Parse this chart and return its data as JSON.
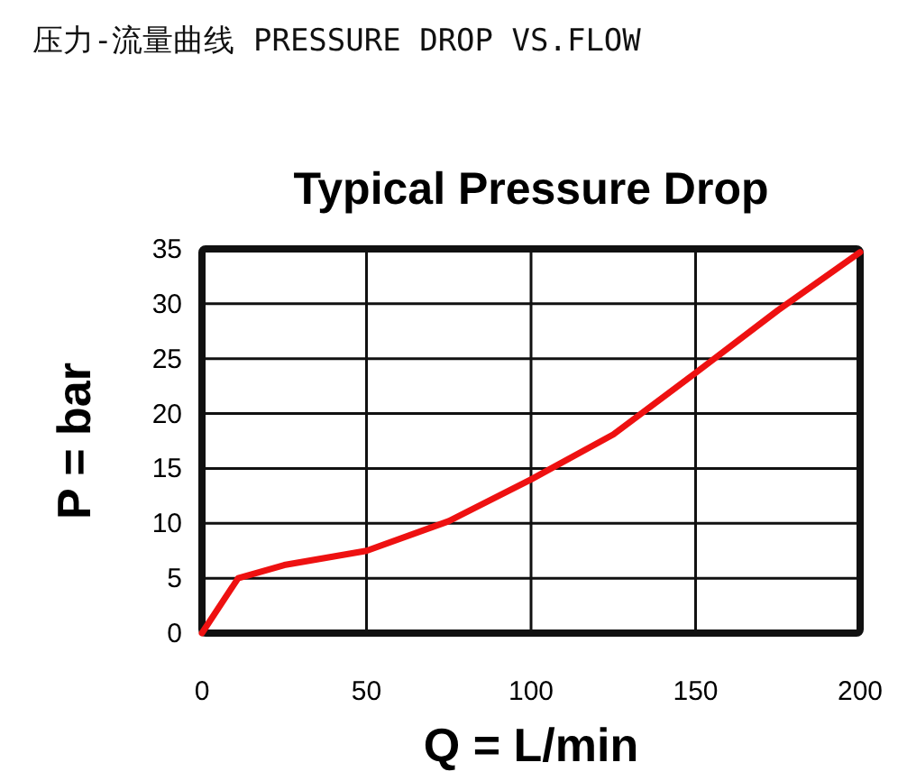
{
  "chart_data": {
    "type": "line",
    "title": "压力-流量曲线 PRESSURE DROP VS.FLOW",
    "subtitle": "Typical Pressure Drop",
    "xlabel": "Q = L/min",
    "ylabel": "P = bar",
    "x": [
      0,
      11,
      25,
      50,
      75,
      100,
      125,
      150,
      175,
      200
    ],
    "series": [
      {
        "color": "#ee1111",
        "values": [
          0,
          5,
          6.2,
          7.5,
          10.2,
          14,
          18.1,
          23.7,
          29.4,
          34.7
        ]
      }
    ],
    "xlim": [
      0,
      200
    ],
    "xticks": [
      0,
      50,
      100,
      150,
      200
    ],
    "ylim": [
      0,
      35
    ],
    "yticks": [
      0,
      5,
      10,
      15,
      20,
      25,
      30,
      35
    ],
    "grid": true,
    "marker": "none",
    "line_style": "solid"
  }
}
